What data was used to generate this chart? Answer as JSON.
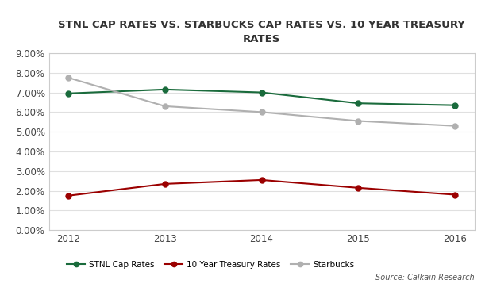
{
  "title": "STNL CAP RATES VS. STARBUCKS CAP RATES VS. 10 YEAR TREASURY\nRATES",
  "years": [
    2012,
    2013,
    2014,
    2015,
    2016
  ],
  "stnl_cap_rates": [
    0.0695,
    0.0715,
    0.07,
    0.0645,
    0.0635
  ],
  "treasury_rates": [
    0.0175,
    0.0235,
    0.0255,
    0.0215,
    0.018
  ],
  "starbucks_rates": [
    0.0775,
    0.063,
    0.06,
    0.0555,
    0.053
  ],
  "stnl_color": "#1a6b3c",
  "treasury_color": "#9b0000",
  "starbucks_color": "#b0b0b0",
  "background_color": "#ffffff",
  "plot_bg_color": "#ffffff",
  "border_color": "#cccccc",
  "grid_color": "#e0e0e0",
  "ylim": [
    0.0,
    0.09
  ],
  "yticks": [
    0.0,
    0.01,
    0.02,
    0.03,
    0.04,
    0.05,
    0.06,
    0.07,
    0.08,
    0.09
  ],
  "source_text": "Source: Calkain Research",
  "legend_labels": [
    "STNL Cap Rates",
    "10 Year Treasury Rates",
    "Starbucks"
  ]
}
